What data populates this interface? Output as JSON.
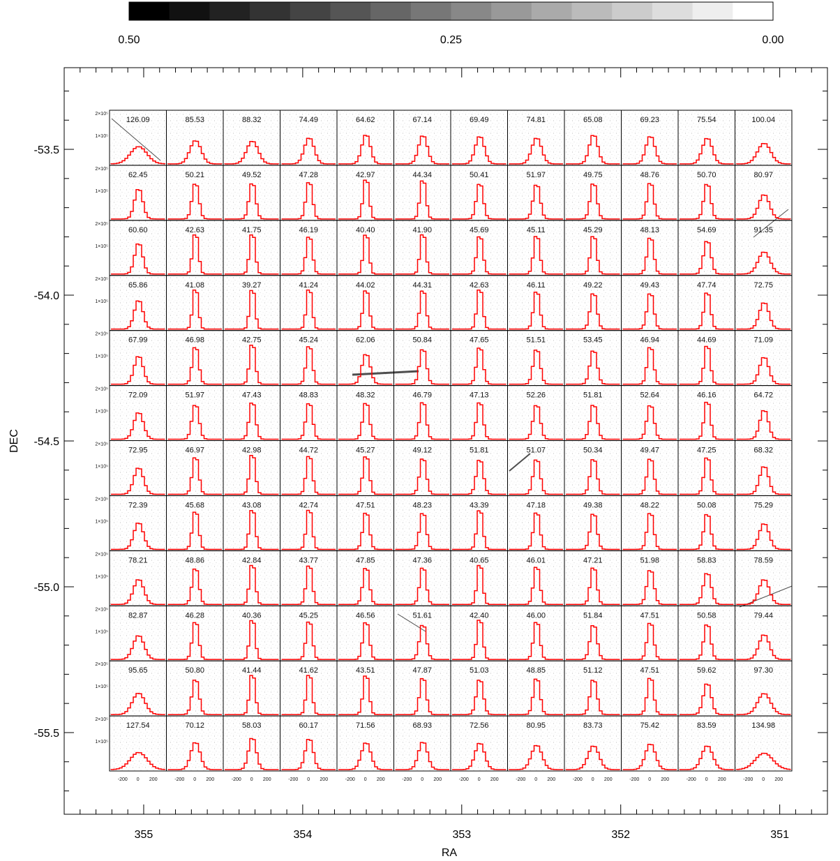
{
  "chart_data": {
    "type": "heatmap",
    "title": "",
    "xlabel": "RA",
    "ylabel": "DEC",
    "colorbar": {
      "tick_labels": [
        "0.50",
        "0.25",
        "0.00"
      ],
      "range": [
        0.5,
        0.0
      ],
      "levels": 16,
      "colormap": "grayscale, black at 0.50 to white at 0.00"
    },
    "x_axis": {
      "tick_labels": [
        "355",
        "354",
        "353",
        "352",
        "351"
      ],
      "tick_values": [
        355,
        354,
        353,
        352,
        351
      ],
      "range": [
        355.5,
        350.7
      ],
      "reversed": true
    },
    "y_axis": {
      "tick_labels": [
        "-53.5",
        "-54.0",
        "-54.5",
        "-55.0",
        "-55.5"
      ],
      "tick_values": [
        -53.5,
        -54.0,
        -54.5,
        -55.0,
        -55.5
      ],
      "range": [
        -55.78,
        -53.22
      ]
    },
    "panel_grid": {
      "rows": 12,
      "cols": 12
    },
    "panel_y_tick_labels": [
      "2×10⁵",
      "1×10⁵"
    ],
    "panel_x_tick_labels": [
      "-200",
      "0",
      "200"
    ],
    "histogram_color": "#ff0000",
    "panel_values": [
      [
        "126.09",
        "85.53",
        "88.32",
        "74.49",
        "64.62",
        "67.14",
        "69.49",
        "74.81",
        "65.08",
        "69.23",
        "75.54",
        "100.04"
      ],
      [
        "62.45",
        "50.21",
        "49.52",
        "47.28",
        "42.97",
        "44.34",
        "50.41",
        "51.97",
        "49.75",
        "48.76",
        "50.70",
        "80.97"
      ],
      [
        "60.60",
        "42.63",
        "41.75",
        "46.19",
        "40.40",
        "41.90",
        "45.69",
        "45.11",
        "45.29",
        "48.13",
        "54.69",
        "91.35"
      ],
      [
        "65.86",
        "41.08",
        "39.27",
        "41.24",
        "44.02",
        "44.31",
        "42.63",
        "46.11",
        "49.22",
        "49.43",
        "47.74",
        "72.75"
      ],
      [
        "67.99",
        "46.98",
        "42.75",
        "45.24",
        "62.06",
        "50.84",
        "47.65",
        "51.51",
        "53.45",
        "46.94",
        "44.69",
        "71.09"
      ],
      [
        "72.09",
        "51.97",
        "47.43",
        "48.83",
        "48.32",
        "46.79",
        "47.13",
        "52.26",
        "51.81",
        "52.64",
        "46.16",
        "64.72"
      ],
      [
        "72.95",
        "46.97",
        "42.98",
        "44.72",
        "45.27",
        "49.12",
        "51.81",
        "51.07",
        "50.34",
        "49.47",
        "47.25",
        "68.32"
      ],
      [
        "72.39",
        "45.68",
        "43.08",
        "42.74",
        "47.51",
        "48.23",
        "43.39",
        "47.18",
        "49.38",
        "48.22",
        "50.08",
        "75.29"
      ],
      [
        "78.21",
        "48.86",
        "42.84",
        "43.77",
        "47.85",
        "47.36",
        "40.65",
        "46.01",
        "47.21",
        "51.98",
        "58.83",
        "78.59"
      ],
      [
        "82.87",
        "46.28",
        "40.36",
        "45.25",
        "46.56",
        "51.61",
        "42.40",
        "46.00",
        "51.84",
        "47.51",
        "50.58",
        "79.44"
      ],
      [
        "95.65",
        "50.80",
        "41.44",
        "41.62",
        "43.51",
        "47.87",
        "51.03",
        "48.85",
        "51.12",
        "47.51",
        "59.62",
        "97.30"
      ],
      [
        "127.54",
        "70.12",
        "58.03",
        "60.17",
        "71.56",
        "68.93",
        "72.56",
        "80.95",
        "83.73",
        "75.42",
        "83.59",
        "134.98"
      ]
    ]
  }
}
